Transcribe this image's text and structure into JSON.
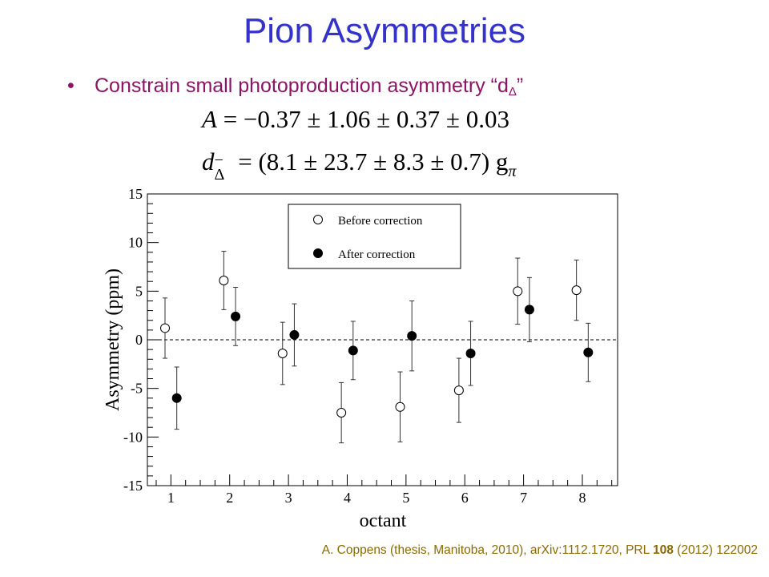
{
  "slide": {
    "title": "Pion Asymmetries",
    "bullet_marker": "•",
    "bullet_text": "Constrain small photoproduction asymmetry “d",
    "bullet_sub": "Δ",
    "bullet_close": "”",
    "equation_1": {
      "lhs": "A",
      "rhs": "= −0.37 ± 1.06 ± 0.37 ± 0.03"
    },
    "equation_2": {
      "lhs": "d",
      "lhs_sup": "−",
      "lhs_sub": "Δ",
      "rhs": "= (8.1 ± 23.7 ± 8.3 ± 0.7) g",
      "rhs_sub": "π"
    },
    "citation": {
      "prefix": "A. Coppens (thesis, Manitoba, 2010), arXiv:1112.1720, PRL ",
      "volume": "108",
      "suffix": " (2012) 122002"
    }
  },
  "chart_data": {
    "type": "scatter",
    "xlabel": "octant",
    "ylabel": "Asymmetry (ppm)",
    "xlim": [
      0.6,
      8.6
    ],
    "ylim": [
      -15,
      15
    ],
    "x_ticks": [
      1,
      2,
      3,
      4,
      5,
      6,
      7,
      8
    ],
    "y_ticks": [
      -15,
      -10,
      -5,
      0,
      5,
      10,
      15
    ],
    "zero_line": "dashed",
    "legend_position": "top-center",
    "series": [
      {
        "name": "Before correction",
        "marker": "open-circle",
        "x": [
          0.9,
          1.9,
          2.9,
          3.9,
          4.9,
          5.9,
          6.9,
          7.9
        ],
        "y": [
          1.2,
          6.1,
          -1.4,
          -7.5,
          -6.9,
          -5.2,
          5.0,
          5.1
        ],
        "err": [
          3.1,
          3.0,
          3.2,
          3.1,
          3.6,
          3.3,
          3.4,
          3.1
        ]
      },
      {
        "name": "After correction",
        "marker": "filled-circle",
        "x": [
          1.1,
          2.1,
          3.1,
          4.1,
          5.1,
          6.1,
          7.1,
          8.1
        ],
        "y": [
          -6.0,
          2.4,
          0.5,
          -1.1,
          0.4,
          -1.4,
          3.1,
          -1.3
        ],
        "err": [
          3.2,
          3.0,
          3.2,
          3.0,
          3.6,
          3.3,
          3.3,
          3.0
        ]
      }
    ]
  }
}
